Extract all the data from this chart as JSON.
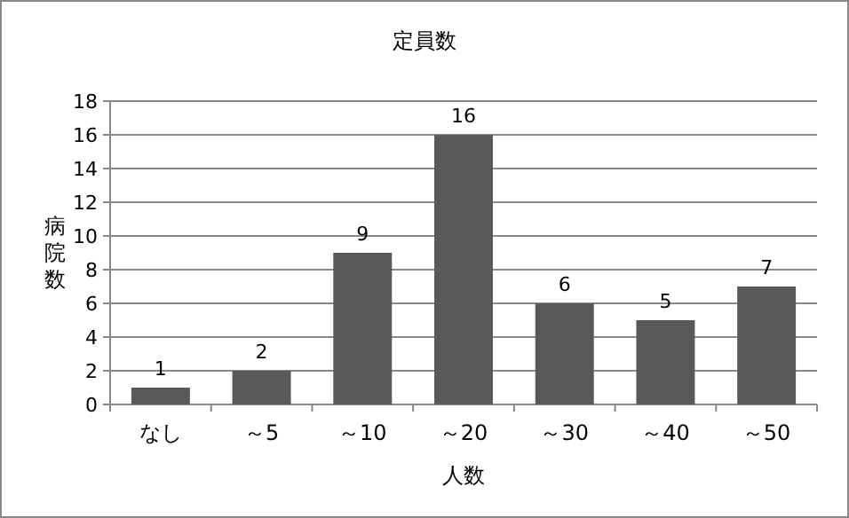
{
  "chart_data": {
    "type": "bar",
    "title": "定員数",
    "xlabel": "人数",
    "ylabel": "病院数",
    "categories": [
      "なし",
      "～5",
      "～10",
      "～20",
      "～30",
      "～40",
      "～50"
    ],
    "values": [
      1,
      2,
      9,
      16,
      6,
      5,
      7
    ],
    "color": "#595959",
    "ylim": [
      0,
      18
    ],
    "yticks": [
      0,
      2,
      4,
      6,
      8,
      10,
      12,
      14,
      16,
      18
    ],
    "grid": "y",
    "data_labels": true
  }
}
